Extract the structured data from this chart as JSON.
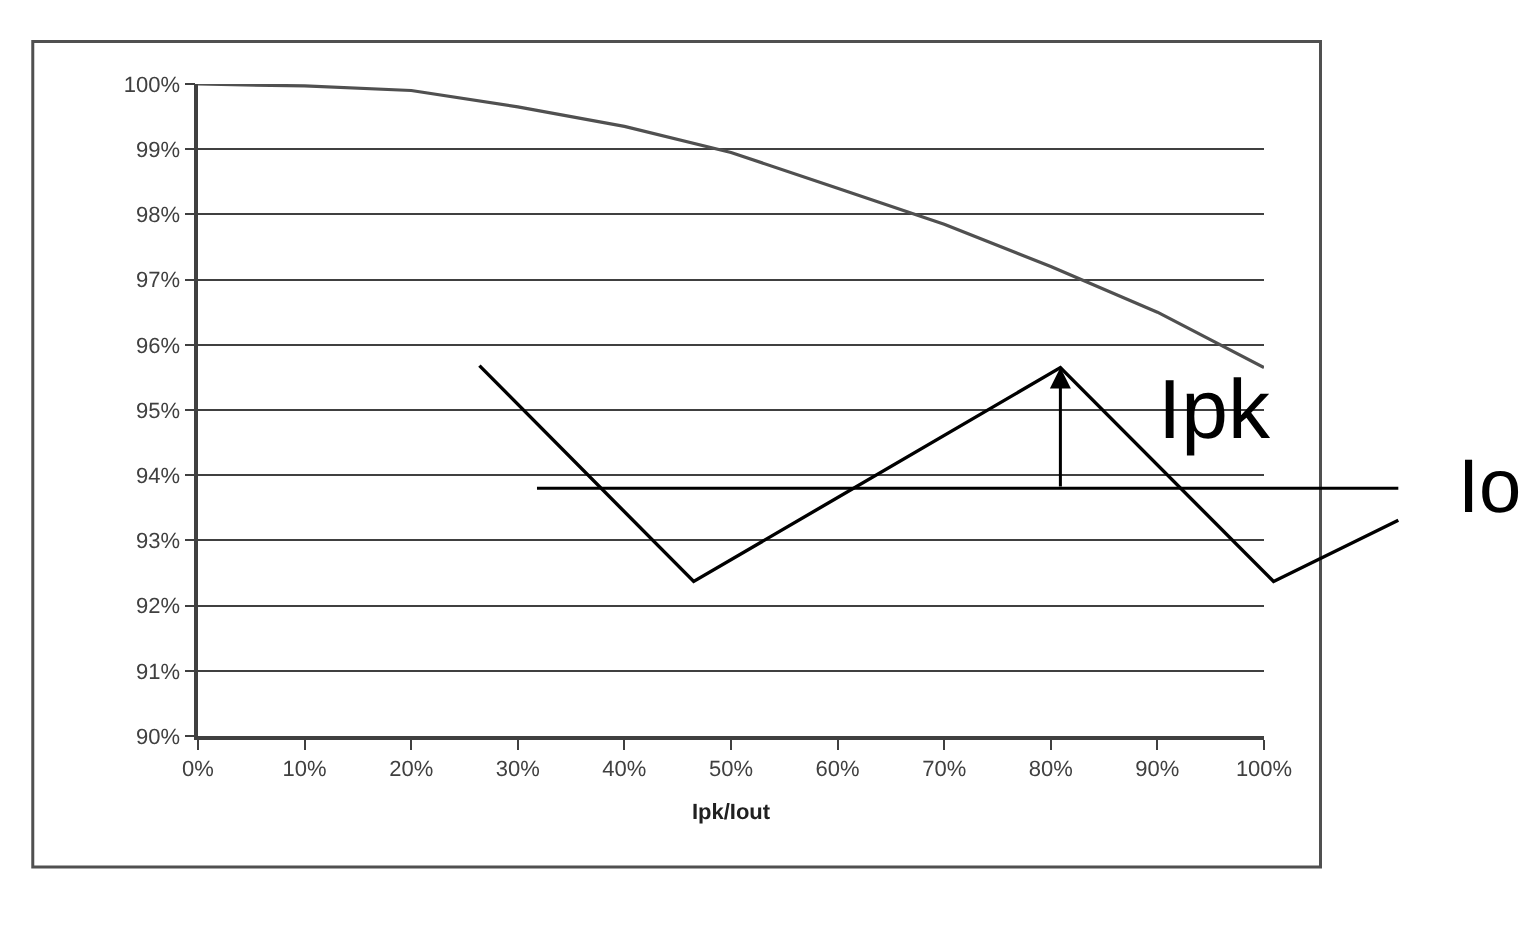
{
  "chart_data": {
    "type": "line",
    "xlabel": "Ipk/Iout",
    "x": [
      0,
      10,
      20,
      30,
      40,
      50,
      60,
      70,
      80,
      90,
      100
    ],
    "values": [
      100.0,
      99.97,
      99.9,
      99.65,
      99.35,
      98.95,
      98.4,
      97.85,
      97.2,
      96.5,
      95.65
    ],
    "color": "#505050",
    "xlim": [
      0,
      100
    ],
    "xticks": [
      {
        "value": 0,
        "label": "0%"
      },
      {
        "value": 10,
        "label": "10%"
      },
      {
        "value": 20,
        "label": "20%"
      },
      {
        "value": 30,
        "label": "30%"
      },
      {
        "value": 40,
        "label": "40%"
      },
      {
        "value": 50,
        "label": "50%"
      },
      {
        "value": 60,
        "label": "60%"
      },
      {
        "value": 70,
        "label": "70%"
      },
      {
        "value": 80,
        "label": "80%"
      },
      {
        "value": 90,
        "label": "90%"
      },
      {
        "value": 100,
        "label": "100%"
      }
    ],
    "ylim": [
      90,
      100
    ],
    "yticks": [
      {
        "value": 90,
        "label": "90%"
      },
      {
        "value": 91,
        "label": "91%"
      },
      {
        "value": 92,
        "label": "92%"
      },
      {
        "value": 93,
        "label": "93%"
      },
      {
        "value": 94,
        "label": "94%"
      },
      {
        "value": 95,
        "label": "95%"
      },
      {
        "value": 96,
        "label": "96%"
      },
      {
        "value": 97,
        "label": "97%"
      },
      {
        "value": 98,
        "label": "98%"
      },
      {
        "value": 99,
        "label": "99%"
      },
      {
        "value": 100,
        "label": "100%"
      }
    ],
    "grid": "y",
    "ref_lines": [
      {
        "axis": "y",
        "value": 93.8,
        "label": "Io"
      }
    ],
    "annotations": [
      "Ipk"
    ]
  }
}
